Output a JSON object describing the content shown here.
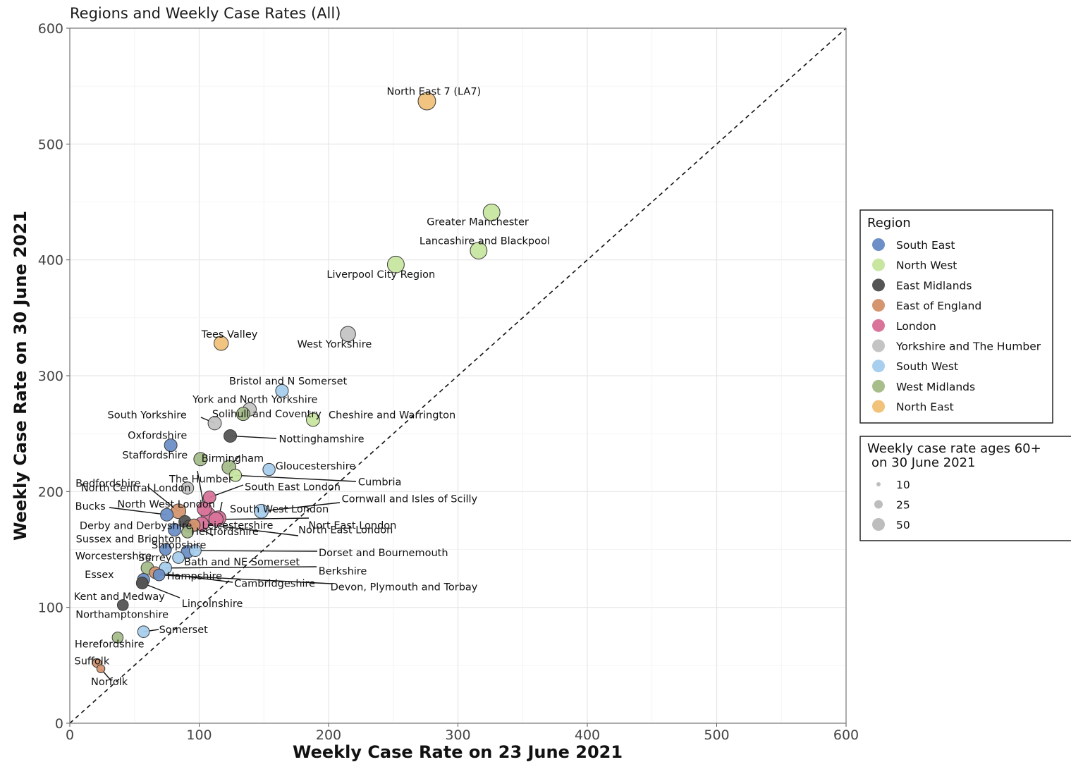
{
  "chart_data": {
    "type": "scatter",
    "title": "Regions and Weekly Case Rates (All)",
    "xlabel": "Weekly Case Rate on 23 June 2021",
    "ylabel": "Weekly Case Rate on 30 June 2021",
    "xlim": [
      0,
      600
    ],
    "ylim": [
      0,
      600
    ],
    "x_ticks": [
      "0",
      "100",
      "200",
      "300",
      "400",
      "500",
      "600"
    ],
    "y_ticks": [
      "0",
      "100",
      "200",
      "300",
      "400",
      "500",
      "600"
    ],
    "grid": true,
    "reference_line": "y = x (dashed)",
    "legend_placement": "right",
    "region_legend": {
      "title": "Region",
      "items": [
        {
          "name": "South East",
          "color": "#6b8fc6"
        },
        {
          "name": "North West",
          "color": "#c8e6a0"
        },
        {
          "name": "East Midlands",
          "color": "#555555"
        },
        {
          "name": "East of England",
          "color": "#d4956f"
        },
        {
          "name": "London",
          "color": "#d9739a"
        },
        {
          "name": "Yorkshire and The Humber",
          "color": "#c4c4c4"
        },
        {
          "name": "South West",
          "color": "#a8cfee"
        },
        {
          "name": "West Midlands",
          "color": "#a7bd8a"
        },
        {
          "name": "North East",
          "color": "#f0c27a"
        }
      ]
    },
    "size_legend": {
      "title_line1": "Weekly case rate ages 60+",
      "title_line2": "on 30 June 2021",
      "items": [
        {
          "label": "10",
          "value": 10
        },
        {
          "label": "25",
          "value": 25
        },
        {
          "label": "50",
          "value": 50
        }
      ]
    },
    "points": [
      {
        "name": "North East 7 (LA7)",
        "region": "North East",
        "x": 276,
        "y": 537,
        "size": 50
      },
      {
        "name": "Greater Manchester",
        "region": "North West",
        "x": 326,
        "y": 441,
        "size": 45
      },
      {
        "name": "Lancashire and Blackpool",
        "region": "North West",
        "x": 316,
        "y": 408,
        "size": 45
      },
      {
        "name": "Liverpool City Region",
        "region": "North West",
        "x": 252,
        "y": 396,
        "size": 45
      },
      {
        "name": "West Yorkshire",
        "region": "Yorkshire and The Humber",
        "x": 215,
        "y": 336,
        "size": 35
      },
      {
        "name": "Tees Valley",
        "region": "North East",
        "x": 117,
        "y": 328,
        "size": 30
      },
      {
        "name": "Bristol and N Somerset",
        "region": "South West",
        "x": 164,
        "y": 287,
        "size": 22
      },
      {
        "name": "York and North Yorkshire",
        "region": "Yorkshire and The Humber",
        "x": 139,
        "y": 271,
        "size": 25
      },
      {
        "name": "Cheshire and Warrington",
        "region": "North West",
        "x": 188,
        "y": 262,
        "size": 25
      },
      {
        "name": "South Yorkshire",
        "region": "Yorkshire and The Humber",
        "x": 112,
        "y": 259,
        "size": 25
      },
      {
        "name": "Solihull and Coventry",
        "region": "West Midlands",
        "x": 134,
        "y": 267,
        "size": 25
      },
      {
        "name": "Nottinghamshire",
        "region": "East Midlands",
        "x": 124,
        "y": 248,
        "size": 22
      },
      {
        "name": "Oxfordshire",
        "region": "South East",
        "x": 78,
        "y": 240,
        "size": 22
      },
      {
        "name": "Staffordshire",
        "region": "West Midlands",
        "x": 101,
        "y": 228,
        "size": 25
      },
      {
        "name": "Birmingham",
        "region": "West Midlands",
        "x": 123,
        "y": 221,
        "size": 28
      },
      {
        "name": "Gloucestershire",
        "region": "South West",
        "x": 154,
        "y": 219,
        "size": 20
      },
      {
        "name": "Cumbria",
        "region": "North West",
        "x": 128,
        "y": 214,
        "size": 20
      },
      {
        "name": "The Humber",
        "region": "Yorkshire and The Humber",
        "x": 91,
        "y": 203,
        "size": 20
      },
      {
        "name": "North Central London",
        "region": "London",
        "x": 104,
        "y": 185,
        "size": 30
      },
      {
        "name": "South East London",
        "region": "London",
        "x": 108,
        "y": 195,
        "size": 22
      },
      {
        "name": "Bedfordshire",
        "region": "East of England",
        "x": 84,
        "y": 183,
        "size": 32
      },
      {
        "name": "Bucks",
        "region": "South East",
        "x": 75,
        "y": 180,
        "size": 22
      },
      {
        "name": "North West London",
        "region": "London",
        "x": 107,
        "y": 180,
        "size": 32
      },
      {
        "name": "South West London",
        "region": "London",
        "x": 115,
        "y": 177,
        "size": 32
      },
      {
        "name": "Cornwall and Isles of Scilly",
        "region": "South West",
        "x": 148,
        "y": 183,
        "size": 28
      },
      {
        "name": "Nort East London",
        "region": "London",
        "x": 113,
        "y": 176,
        "size": 30
      },
      {
        "name": "Leicestershire",
        "region": "East Midlands",
        "x": 89,
        "y": 174,
        "size": 20
      },
      {
        "name": "Derby and Derbyshire",
        "region": "East Midlands",
        "x": 92,
        "y": 170,
        "size": 20
      },
      {
        "name": "North East London",
        "region": "London",
        "x": 102,
        "y": 172,
        "size": 28
      },
      {
        "name": "Hertfordshire",
        "region": "East of England",
        "x": 96,
        "y": 171,
        "size": 20
      },
      {
        "name": "Sussex and Brighton",
        "region": "South East",
        "x": 81,
        "y": 167,
        "size": 22
      },
      {
        "name": "Shropshire",
        "region": "West Midlands",
        "x": 91,
        "y": 165,
        "size": 18
      },
      {
        "name": "Dorset and Bournemouth",
        "region": "South West",
        "x": 97,
        "y": 149,
        "size": 18
      },
      {
        "name": "Worcestershire",
        "region": "South East",
        "x": 74,
        "y": 150,
        "size": 18
      },
      {
        "name": "Bath and NE Somerset",
        "region": "South East",
        "x": 91,
        "y": 148,
        "size": 22
      },
      {
        "name": "Surrey",
        "region": "South West",
        "x": 84,
        "y": 143,
        "size": 18
      },
      {
        "name": "Berkshire",
        "region": "South West",
        "x": 74,
        "y": 134,
        "size": 20
      },
      {
        "name": "Essex",
        "region": "West Midlands",
        "x": 60,
        "y": 134,
        "size": 22
      },
      {
        "name": "Cambridgeshire",
        "region": "East of England",
        "x": 66,
        "y": 130,
        "size": 18
      },
      {
        "name": "Devon, Plymouth and Torbay",
        "region": "South East",
        "x": 69,
        "y": 128,
        "size": 18
      },
      {
        "name": "Hampshire",
        "region": "South East",
        "x": 57,
        "y": 124,
        "size": 20
      },
      {
        "name": "Kent and Medway",
        "region": "East Midlands",
        "x": 56,
        "y": 121,
        "size": 18
      },
      {
        "name": "Lincolnshire",
        "region": "East Midlands",
        "x": 56,
        "y": 121,
        "size": 18
      },
      {
        "name": "Northamptonshire",
        "region": "East Midlands",
        "x": 41,
        "y": 102,
        "size": 15
      },
      {
        "name": "Somerset",
        "region": "South West",
        "x": 57,
        "y": 79,
        "size": 18
      },
      {
        "name": "Herefordshire",
        "region": "West Midlands",
        "x": 37,
        "y": 74,
        "size": 15
      },
      {
        "name": "Suffolk",
        "region": "East of England",
        "x": 21,
        "y": 52,
        "size": 8
      },
      {
        "name": "Norfolk",
        "region": "East of England",
        "x": 24,
        "y": 47,
        "size": 6
      }
    ]
  }
}
